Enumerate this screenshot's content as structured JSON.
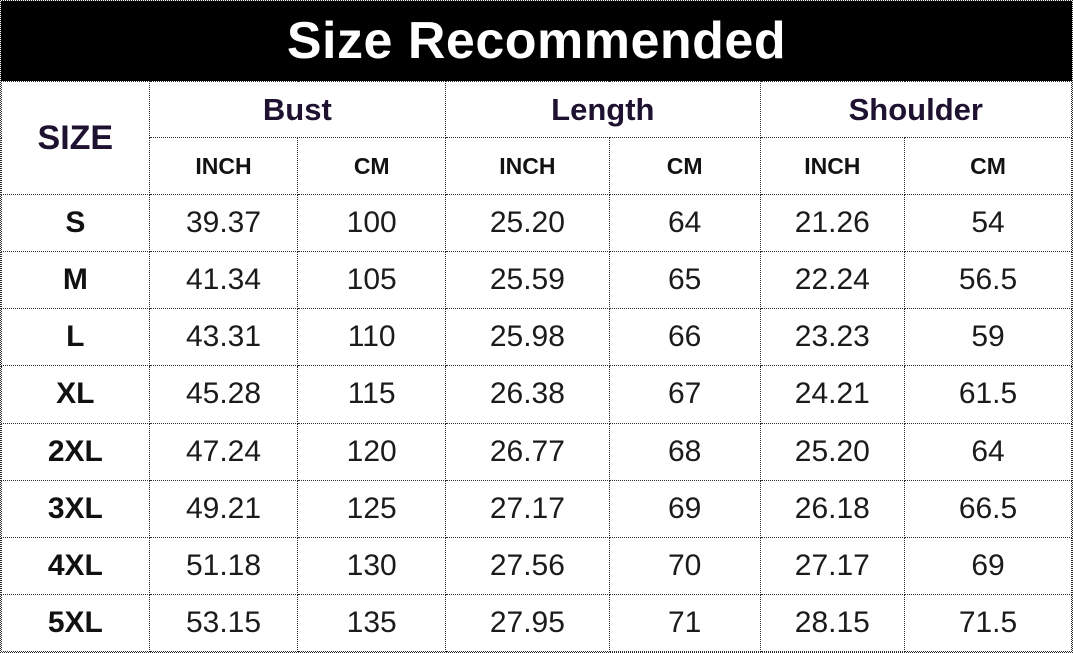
{
  "title": "Size Recommended",
  "table": {
    "size_header": "SIZE",
    "groups": [
      {
        "label": "Bust"
      },
      {
        "label": "Length"
      },
      {
        "label": "Shoulder"
      }
    ],
    "unit_headers": [
      "INCH",
      "CM",
      "INCH",
      "CM",
      "INCH",
      "CM"
    ],
    "rows": [
      {
        "size": "S",
        "cells": [
          "39.37",
          "100",
          "25.20",
          "64",
          "21.26",
          "54"
        ]
      },
      {
        "size": "M",
        "cells": [
          "41.34",
          "105",
          "25.59",
          "65",
          "22.24",
          "56.5"
        ]
      },
      {
        "size": "L",
        "cells": [
          "43.31",
          "110",
          "25.98",
          "66",
          "23.23",
          "59"
        ]
      },
      {
        "size": "XL",
        "cells": [
          "45.28",
          "115",
          "26.38",
          "67",
          "24.21",
          "61.5"
        ]
      },
      {
        "size": "2XL",
        "cells": [
          "47.24",
          "120",
          "26.77",
          "68",
          "25.20",
          "64"
        ]
      },
      {
        "size": "3XL",
        "cells": [
          "49.21",
          "125",
          "27.17",
          "69",
          "26.18",
          "66.5"
        ]
      },
      {
        "size": "4XL",
        "cells": [
          "51.18",
          "130",
          "27.56",
          "70",
          "27.17",
          "69"
        ]
      },
      {
        "size": "5XL",
        "cells": [
          "53.15",
          "135",
          "27.95",
          "71",
          "28.15",
          "71.5"
        ]
      }
    ]
  },
  "colors": {
    "title_background": "#000000",
    "title_text": "#ffffff",
    "header_text": "#1e1230",
    "body_text": "#1b1b1b",
    "border": "#2b2b2b",
    "background": "#ffffff"
  },
  "chart_data": {
    "type": "table",
    "title": "Size Recommended",
    "columns": [
      "SIZE",
      "Bust INCH",
      "Bust CM",
      "Length INCH",
      "Length CM",
      "Shoulder INCH",
      "Shoulder CM"
    ],
    "rows": [
      [
        "S",
        39.37,
        100,
        25.2,
        64,
        21.26,
        54
      ],
      [
        "M",
        41.34,
        105,
        25.59,
        65,
        22.24,
        56.5
      ],
      [
        "L",
        43.31,
        110,
        25.98,
        66,
        23.23,
        59
      ],
      [
        "XL",
        45.28,
        115,
        26.38,
        67,
        24.21,
        61.5
      ],
      [
        "2XL",
        47.24,
        120,
        26.77,
        68,
        25.2,
        64
      ],
      [
        "3XL",
        49.21,
        125,
        27.17,
        69,
        26.18,
        66.5
      ],
      [
        "4XL",
        51.18,
        130,
        27.56,
        70,
        27.17,
        69
      ],
      [
        "5XL",
        53.15,
        135,
        27.95,
        71,
        28.15,
        71.5
      ]
    ]
  }
}
